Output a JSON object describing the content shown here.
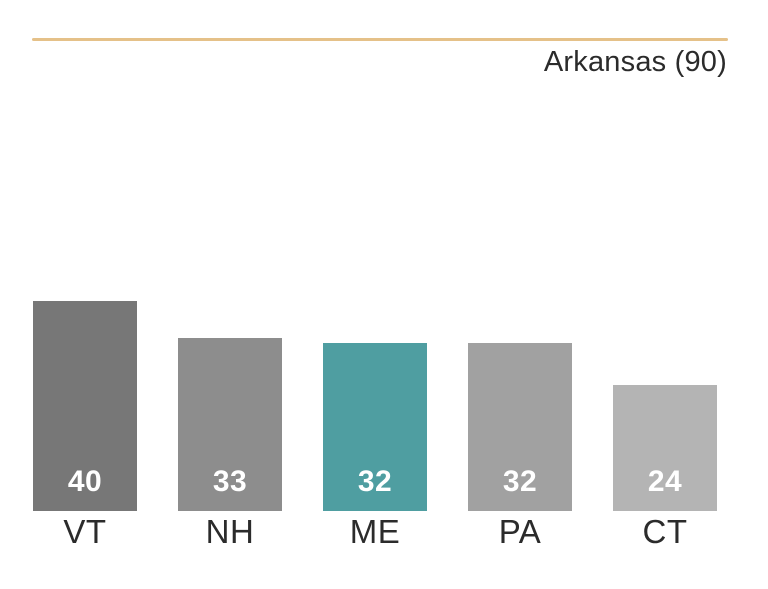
{
  "page": {
    "background": "#ffffff"
  },
  "header": {
    "title": "Arkansas (90)",
    "title_color": "#2b2b2b",
    "rule_color": "#e5c189"
  },
  "chart_data": {
    "type": "bar",
    "title": "Arkansas (90)",
    "categories": [
      "VT",
      "NH",
      "ME",
      "PA",
      "CT"
    ],
    "values": [
      40,
      33,
      32,
      32,
      24
    ],
    "bar_colors": [
      "#777777",
      "#8d8d8d",
      "#4f9ea1",
      "#a1a1a1",
      "#b4b4b4"
    ],
    "highlighted_category": "ME",
    "highlight_color": "#4f9ea1",
    "value_label_color": "#ffffff",
    "value_labels_position": "inside-bottom",
    "axis_label_color": "#2b2b2b",
    "xlabel": "",
    "ylabel": "",
    "ylim": [
      0,
      40
    ],
    "grid": false,
    "legend": false
  }
}
